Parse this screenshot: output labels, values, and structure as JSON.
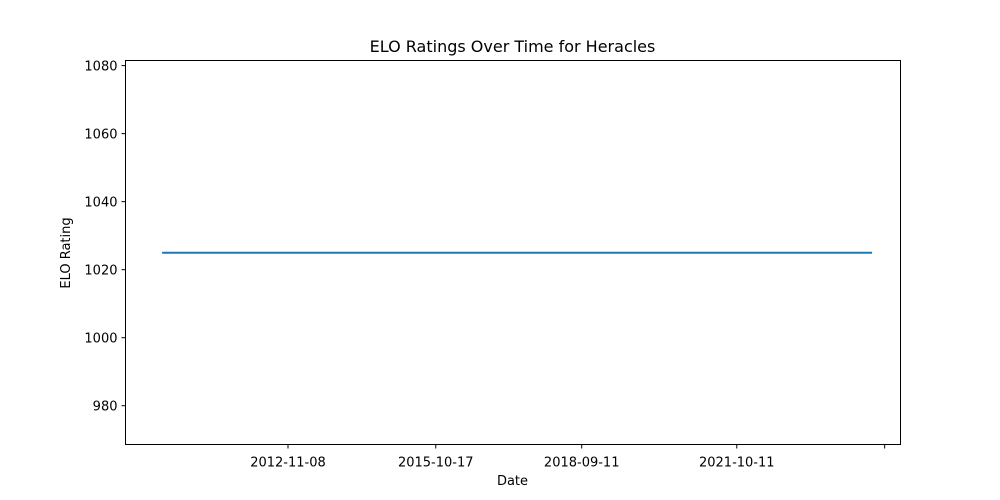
{
  "chart_data": {
    "type": "line",
    "title": "ELO Ratings Over Time for Heracles",
    "xlabel": "Date",
    "ylabel": "ELO Rating",
    "x": [
      "2010-05-09",
      "2024-06-20"
    ],
    "series": [
      {
        "values": [
          1025,
          1025
        ],
        "color": "#1f77b4"
      }
    ],
    "x_ticks": [
      "2012-11-08",
      "2015-10-17",
      "2018-09-11",
      "2021-10-11",
      ""
    ],
    "x_tick_values": [
      "2012-11-08",
      "2015-10-17",
      "2018-09-11",
      "2021-10-11",
      "2024-09-19"
    ],
    "y_ticks": [
      980,
      1000,
      1020,
      1040,
      1060,
      1080
    ],
    "xlim": [
      "2009-08-16",
      "2025-01-12"
    ],
    "ylim": [
      968.6,
      1081.5
    ],
    "grid": false,
    "legend": "none"
  }
}
